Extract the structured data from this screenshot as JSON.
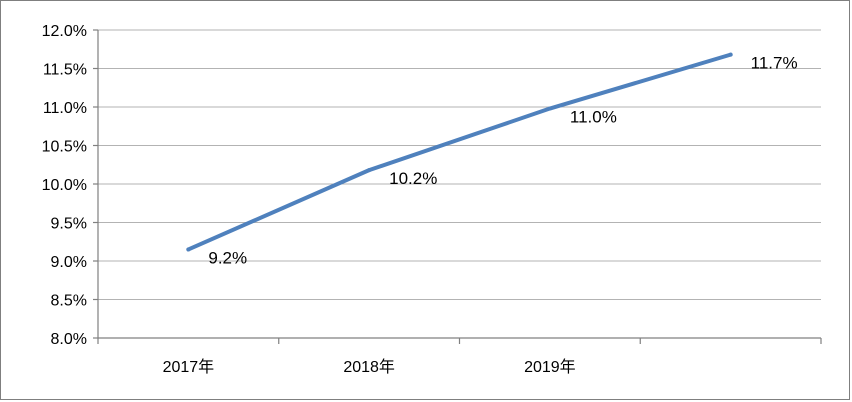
{
  "chart_data": {
    "type": "line",
    "title": "",
    "xlabel": "",
    "ylabel": "",
    "categories": [
      "2017年",
      "2018年",
      "2019年",
      ""
    ],
    "series": [
      {
        "values": [
          9.15,
          10.18,
          10.98,
          11.68
        ],
        "data_labels": [
          "9.2%",
          "10.2%",
          "11.0%",
          "11.7%"
        ],
        "color": "#4f81bd"
      }
    ],
    "ylim": [
      8.0,
      12.0
    ],
    "y_ticks": [
      8.0,
      8.5,
      9.0,
      9.5,
      10.0,
      10.5,
      11.0,
      11.5,
      12.0
    ],
    "y_tick_labels": [
      "8.0%",
      "8.5%",
      "9.0%",
      "9.5%",
      "10.0%",
      "10.5%",
      "11.0%",
      "11.5%",
      "12.0%"
    ],
    "grid": true,
    "legend": "none"
  }
}
